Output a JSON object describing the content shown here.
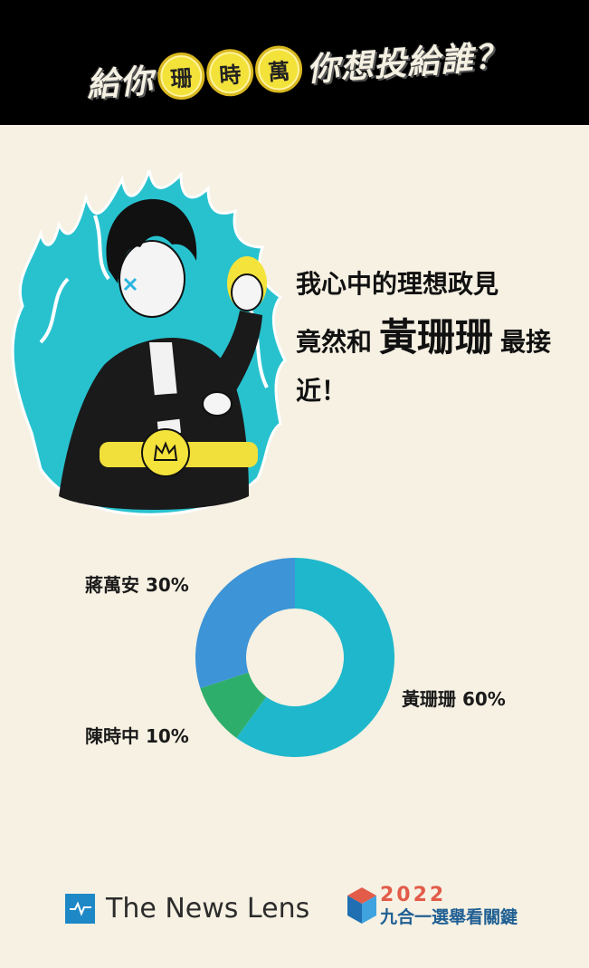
{
  "header": {
    "title_prefix": "給你",
    "title_coins": [
      "珊",
      "時",
      "萬"
    ],
    "title_suffix": "你想投給誰？"
  },
  "headline": {
    "line1": "我心中的理想政見",
    "line2_prefix": "竟然和",
    "line2_name": "黃珊珊",
    "line2_suffix": "最接",
    "line3": "近！"
  },
  "chart_data": {
    "type": "pie",
    "donut": true,
    "categories": [
      "黃珊珊",
      "陳時中",
      "蔣萬安"
    ],
    "values": [
      60,
      10,
      30
    ],
    "labels": [
      "黃珊珊 60%",
      "陳時中 10%",
      "蔣萬安 30%"
    ],
    "colors": [
      "#1fb7cc",
      "#2eae6b",
      "#3d94d6"
    ]
  },
  "footer": {
    "brand": "The News Lens",
    "election_year": "2022",
    "election_title": "九合一選舉看關鍵"
  }
}
